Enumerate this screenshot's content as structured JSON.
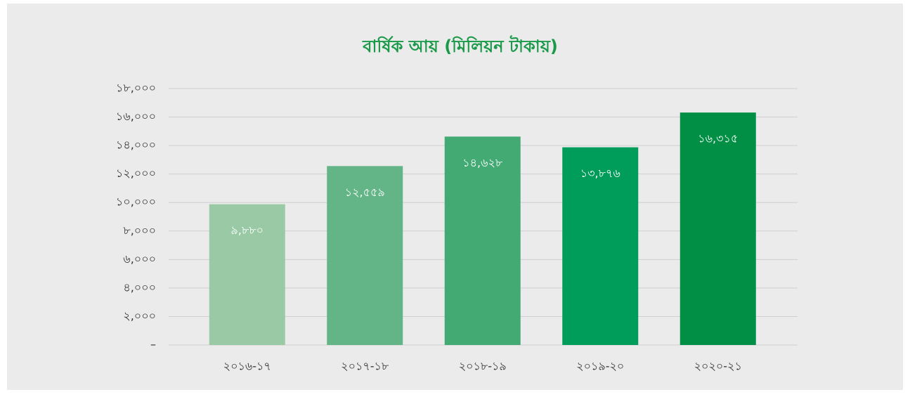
{
  "chart_data": {
    "type": "bar",
    "title": "বার্ষিক আয় (মিলিয়ন টাকায়)",
    "categories": [
      "২০১৬-১৭",
      "২০১৭-১৮",
      "২০১৮-১৯",
      "২০১৯-২০",
      "২০২০-২১"
    ],
    "values": [
      9880,
      12559,
      14628,
      13876,
      16315
    ],
    "value_labels": [
      "৯,৮৮০",
      "১২,৫৫৯",
      "১৪,৬২৮",
      "১৩,৮৭৬",
      "১৬,৩১৫"
    ],
    "colors": [
      "#9ac9a5",
      "#63b588",
      "#43aa74",
      "#009c5a",
      "#008f45"
    ],
    "ylim": [
      0,
      18000
    ],
    "yticks": [
      {
        "value": 0,
        "label": "–"
      },
      {
        "value": 2000,
        "label": "২,০০০"
      },
      {
        "value": 4000,
        "label": "৪,০০০"
      },
      {
        "value": 6000,
        "label": "৬,০০০"
      },
      {
        "value": 8000,
        "label": "৮,০০০"
      },
      {
        "value": 10000,
        "label": "১০,০০০"
      },
      {
        "value": 12000,
        "label": "১২,০০০"
      },
      {
        "value": 14000,
        "label": "১৪,০০০"
      },
      {
        "value": 16000,
        "label": "১৬,০০০"
      },
      {
        "value": 18000,
        "label": "১৮,০০০"
      }
    ],
    "grid": true
  }
}
